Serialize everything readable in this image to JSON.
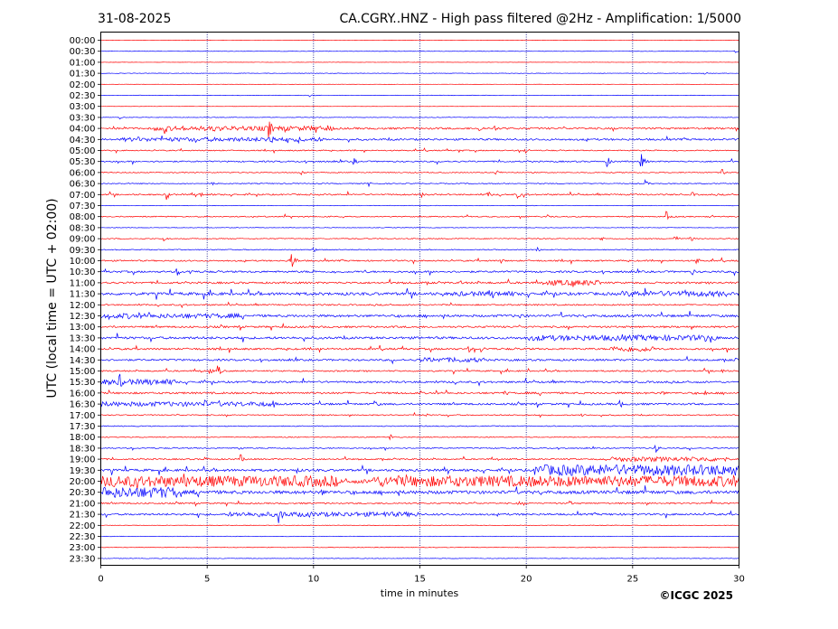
{
  "header": {
    "date": "31-08-2025",
    "title": "CA.CGRY..HNZ - High pass filtered @2Hz - Amplification: 1/5000"
  },
  "footer": {
    "copyright": "©ICGC 2025"
  },
  "chart_data": {
    "type": "line",
    "title": "CA.CGRY..HNZ - High pass filtered @2Hz - Amplification: 1/5000",
    "xlabel": "time in minutes",
    "ylabel": "UTC (local time = UTC + 02:00)",
    "xlim": [
      0,
      30
    ],
    "xticks": [
      "0",
      "5",
      "10",
      "15",
      "20",
      "25",
      "30"
    ],
    "xtick_values": [
      0,
      5,
      10,
      15,
      20,
      25,
      30
    ],
    "vertical_gridlines_at": [
      5,
      10,
      15,
      20,
      25
    ],
    "row_labels": [
      "00:00",
      "00:30",
      "01:00",
      "01:30",
      "02:00",
      "02:30",
      "03:00",
      "03:30",
      "04:00",
      "04:30",
      "05:00",
      "05:30",
      "06:00",
      "06:30",
      "07:00",
      "07:30",
      "08:00",
      "08:30",
      "09:00",
      "09:30",
      "10:00",
      "10:30",
      "11:00",
      "11:30",
      "12:00",
      "12:30",
      "13:00",
      "13:30",
      "14:00",
      "14:30",
      "15:00",
      "15:30",
      "16:00",
      "16:30",
      "17:00",
      "17:30",
      "18:00",
      "18:30",
      "19:00",
      "19:30",
      "20:00",
      "20:30",
      "21:00",
      "21:30",
      "22:00",
      "22:30",
      "23:00",
      "23:30"
    ],
    "colors": {
      "hour": "#ff0000",
      "half_hour": "#0000ff",
      "grid": "#000080"
    },
    "noise_level": [
      0.3,
      0.5,
      0.3,
      0.5,
      0.3,
      0.5,
      0.3,
      0.6,
      2.0,
      2.0,
      1.2,
      1.5,
      1.0,
      1.0,
      1.5,
      0.6,
      1.2,
      0.6,
      1.0,
      1.0,
      1.5,
      2.0,
      2.0,
      3.0,
      1.5,
      2.5,
      2.0,
      2.5,
      2.0,
      2.0,
      1.5,
      2.0,
      2.0,
      2.0,
      1.2,
      1.0,
      1.0,
      1.2,
      1.5,
      2.5,
      4.5,
      3.5,
      1.5,
      2.0,
      0.6,
      0.6,
      0.6,
      0.6
    ],
    "events": [
      {
        "row": "00:30",
        "t": 29.8,
        "amp": 2
      },
      {
        "row": "01:30",
        "t": 28.4,
        "amp": 2
      },
      {
        "row": "02:30",
        "t": 9.8,
        "amp": 2
      },
      {
        "row": "03:30",
        "t": 0.9,
        "amp": 2
      },
      {
        "row": "04:00",
        "t": 3.0,
        "amp": 7
      },
      {
        "row": "04:00",
        "t": 5.3,
        "amp": 5
      },
      {
        "row": "04:00",
        "t": 7.9,
        "amp": 12
      },
      {
        "row": "04:00",
        "t": 10.1,
        "amp": 6
      },
      {
        "row": "04:00",
        "t": 17.8,
        "amp": 5
      },
      {
        "row": "04:00",
        "t": 18.5,
        "amp": 4
      },
      {
        "row": "04:30",
        "t": 1.8,
        "amp": 3
      },
      {
        "row": "04:30",
        "t": 7.9,
        "amp": 14
      },
      {
        "row": "04:30",
        "t": 9.3,
        "amp": 4
      },
      {
        "row": "05:00",
        "t": 16.8,
        "amp": 3
      },
      {
        "row": "05:00",
        "t": 19.9,
        "amp": 5
      },
      {
        "row": "05:30",
        "t": 11.9,
        "amp": 4
      },
      {
        "row": "05:30",
        "t": 23.8,
        "amp": 6
      },
      {
        "row": "05:30",
        "t": 25.4,
        "amp": 9
      },
      {
        "row": "06:00",
        "t": 9.4,
        "amp": 4
      },
      {
        "row": "06:00",
        "t": 18.6,
        "amp": 3
      },
      {
        "row": "06:00",
        "t": 29.2,
        "amp": 4
      },
      {
        "row": "06:30",
        "t": 5.2,
        "amp": 3
      },
      {
        "row": "06:30",
        "t": 12.6,
        "amp": 3
      },
      {
        "row": "06:30",
        "t": 25.6,
        "amp": 4
      },
      {
        "row": "07:00",
        "t": 3.1,
        "amp": 7
      },
      {
        "row": "07:00",
        "t": 4.7,
        "amp": 3
      },
      {
        "row": "07:00",
        "t": 15.1,
        "amp": 3
      },
      {
        "row": "07:00",
        "t": 18.2,
        "amp": 4
      },
      {
        "row": "07:00",
        "t": 19.6,
        "amp": 4
      },
      {
        "row": "07:00",
        "t": 27.8,
        "amp": 3
      },
      {
        "row": "08:00",
        "t": 21.0,
        "amp": 3
      },
      {
        "row": "08:00",
        "t": 26.6,
        "amp": 6
      },
      {
        "row": "09:00",
        "t": 3.0,
        "amp": 4
      },
      {
        "row": "09:00",
        "t": 23.5,
        "amp": 3
      },
      {
        "row": "09:00",
        "t": 27.0,
        "amp": 4
      },
      {
        "row": "09:00",
        "t": 27.7,
        "amp": 4
      },
      {
        "row": "09:30",
        "t": 10.0,
        "amp": 3
      },
      {
        "row": "09:30",
        "t": 20.5,
        "amp": 3
      },
      {
        "row": "10:00",
        "t": 8.9,
        "amp": 16
      },
      {
        "row": "10:00",
        "t": 18.8,
        "amp": 3
      },
      {
        "row": "10:00",
        "t": 28.0,
        "amp": 4
      },
      {
        "row": "10:30",
        "t": 3.6,
        "amp": 5
      },
      {
        "row": "10:30",
        "t": 4.2,
        "amp": 4
      },
      {
        "row": "10:30",
        "t": 12.4,
        "amp": 3
      },
      {
        "row": "10:30",
        "t": 27.8,
        "amp": 4
      },
      {
        "row": "11:00",
        "t": 16.9,
        "amp": 4
      },
      {
        "row": "11:00",
        "t": 22.2,
        "amp": 6
      },
      {
        "row": "11:30",
        "t": 5.4,
        "amp": 3
      },
      {
        "row": "11:30",
        "t": 16.1,
        "amp": 3
      },
      {
        "row": "11:30",
        "t": 25.6,
        "amp": 4
      },
      {
        "row": "11:30",
        "t": 27.5,
        "amp": 4
      },
      {
        "row": "12:30",
        "t": 0.4,
        "amp": 4
      },
      {
        "row": "12:30",
        "t": 1.3,
        "amp": 4
      },
      {
        "row": "12:30",
        "t": 19.7,
        "amp": 4
      },
      {
        "row": "13:30",
        "t": 28.4,
        "amp": 5
      },
      {
        "row": "14:00",
        "t": 17.3,
        "amp": 4
      },
      {
        "row": "14:00",
        "t": 17.9,
        "amp": 4
      },
      {
        "row": "14:30",
        "t": 29.8,
        "amp": 4
      },
      {
        "row": "15:00",
        "t": 5.1,
        "amp": 4
      },
      {
        "row": "15:00",
        "t": 5.5,
        "amp": 7
      },
      {
        "row": "15:00",
        "t": 29.2,
        "amp": 4
      },
      {
        "row": "15:30",
        "t": 0.2,
        "amp": 3
      },
      {
        "row": "15:30",
        "t": 0.9,
        "amp": 9
      },
      {
        "row": "16:00",
        "t": 19.0,
        "amp": 4
      },
      {
        "row": "16:00",
        "t": 26.4,
        "amp": 3
      },
      {
        "row": "16:00",
        "t": 28.4,
        "amp": 3
      },
      {
        "row": "16:30",
        "t": 4.9,
        "amp": 5
      },
      {
        "row": "16:30",
        "t": 8.1,
        "amp": 5
      },
      {
        "row": "16:30",
        "t": 12.9,
        "amp": 5
      },
      {
        "row": "16:30",
        "t": 24.4,
        "amp": 5
      },
      {
        "row": "17:00",
        "t": 15.3,
        "amp": 2
      },
      {
        "row": "17:00",
        "t": 22.6,
        "amp": 3
      },
      {
        "row": "18:00",
        "t": 13.6,
        "amp": 4
      },
      {
        "row": "18:30",
        "t": 6.5,
        "amp": 3
      },
      {
        "row": "18:30",
        "t": 26.1,
        "amp": 5
      },
      {
        "row": "19:00",
        "t": 4.9,
        "amp": 3
      },
      {
        "row": "19:00",
        "t": 6.6,
        "amp": 5
      },
      {
        "row": "19:00",
        "t": 23.6,
        "amp": 4
      },
      {
        "row": "19:30",
        "t": 9.2,
        "amp": 4
      },
      {
        "row": "20:30",
        "t": 4.4,
        "amp": 3
      },
      {
        "row": "20:30",
        "t": 10.4,
        "amp": 4
      },
      {
        "row": "20:30",
        "t": 16.0,
        "amp": 3
      },
      {
        "row": "21:00",
        "t": 19.6,
        "amp": 3
      },
      {
        "row": "21:00",
        "t": 22.0,
        "amp": 4
      },
      {
        "row": "21:30",
        "t": 8.4,
        "amp": 11
      },
      {
        "row": "21:30",
        "t": 9.8,
        "amp": 4
      },
      {
        "row": "21:30",
        "t": 13.4,
        "amp": 5
      }
    ],
    "noise_bursts": [
      {
        "row": "04:00",
        "from": 2.5,
        "to": 11.0,
        "amp": 2.5
      },
      {
        "row": "04:30",
        "from": 1.0,
        "to": 10.5,
        "amp": 2.2
      },
      {
        "row": "11:00",
        "from": 21.0,
        "to": 23.5,
        "amp": 3
      },
      {
        "row": "11:30",
        "from": 16.5,
        "to": 19.5,
        "amp": 2.5
      },
      {
        "row": "11:30",
        "from": 24.5,
        "to": 29.5,
        "amp": 3
      },
      {
        "row": "12:30",
        "from": 0,
        "to": 6.5,
        "amp": 2.5
      },
      {
        "row": "13:30",
        "from": 20.0,
        "to": 29.0,
        "amp": 3
      },
      {
        "row": "14:00",
        "from": 24.0,
        "to": 26.0,
        "amp": 3
      },
      {
        "row": "14:30",
        "from": 15.0,
        "to": 18.0,
        "amp": 2.5
      },
      {
        "row": "15:30",
        "from": 0,
        "to": 3.5,
        "amp": 3
      },
      {
        "row": "16:30",
        "from": 0,
        "to": 8.0,
        "amp": 2.5
      },
      {
        "row": "19:00",
        "from": 24.0,
        "to": 29.5,
        "amp": 2.5
      },
      {
        "row": "19:30",
        "from": 20.4,
        "to": 30,
        "amp": 6
      },
      {
        "row": "20:00",
        "from": 0,
        "to": 11.1,
        "amp": 6
      },
      {
        "row": "20:00",
        "from": 12.7,
        "to": 30,
        "amp": 6
      },
      {
        "row": "20:30",
        "from": 0,
        "to": 3.8,
        "amp": 6
      },
      {
        "row": "21:30",
        "from": 6.0,
        "to": 15.0,
        "amp": 2.5
      }
    ]
  }
}
